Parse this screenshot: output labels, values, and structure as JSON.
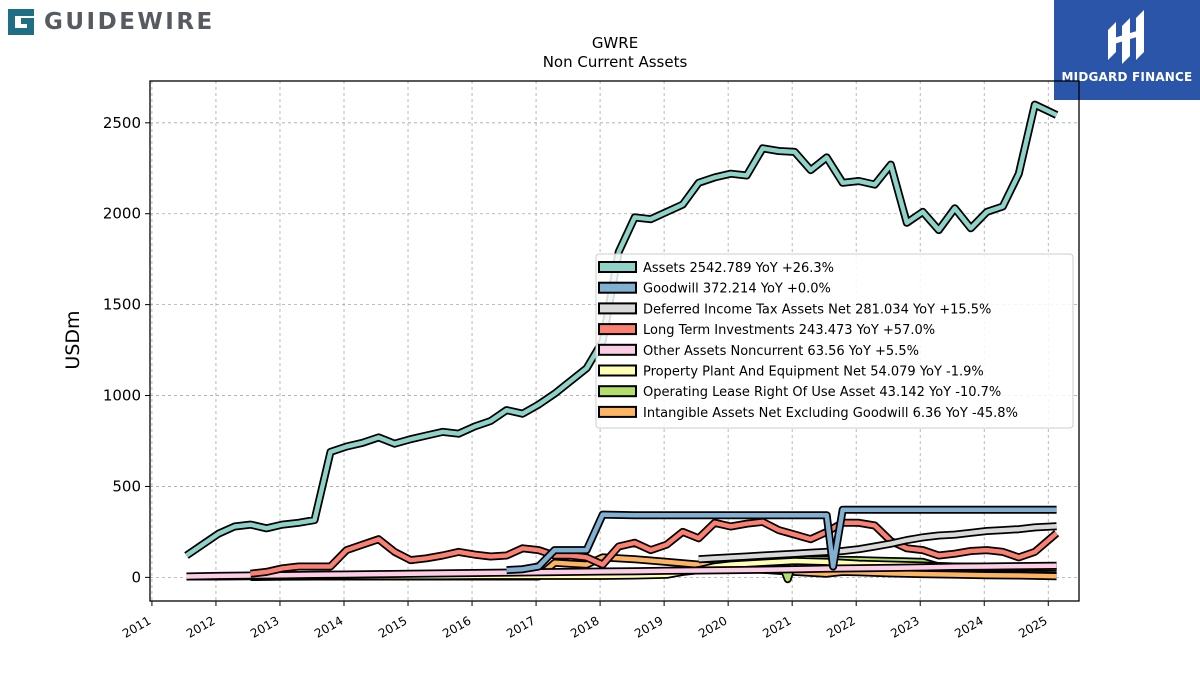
{
  "brand": {
    "name": "GUIDEWIRE",
    "icon": "guidewire-logo-icon",
    "color": "#1f6e86"
  },
  "badge": {
    "name": "MIDGARD FINANCE",
    "icon": "midgard-logo-icon",
    "bg": "#2a55a8"
  },
  "chart_data": {
    "type": "line",
    "title": "GWRE",
    "subtitle": "Non Current  Assets",
    "ylabel": "USDm",
    "xlabel": "",
    "xlim": [
      2010.97,
      2025.48
    ],
    "ylim": [
      -130,
      2730
    ],
    "yticks": [
      0,
      500,
      1000,
      1500,
      2000,
      2500
    ],
    "xticks": [
      2011,
      2012,
      2013,
      2014,
      2015,
      2016,
      2017,
      2018,
      2019,
      2020,
      2021,
      2022,
      2023,
      2024,
      2025
    ],
    "grid": true,
    "legend_position": "center-right",
    "series": [
      {
        "name": "Assets",
        "value": "2542.789",
        "yoy": "+26.3%",
        "color": "#8dd3c7",
        "x": [
          2011.54,
          2011.79,
          2012.04,
          2012.29,
          2012.54,
          2012.79,
          2013.04,
          2013.29,
          2013.54,
          2013.79,
          2014.04,
          2014.29,
          2014.54,
          2014.79,
          2015.04,
          2015.29,
          2015.54,
          2015.79,
          2016.04,
          2016.29,
          2016.54,
          2016.79,
          2017.04,
          2017.29,
          2017.54,
          2017.79,
          2018.04,
          2018.29,
          2018.54,
          2018.79,
          2019.04,
          2019.29,
          2019.54,
          2019.79,
          2020.04,
          2020.29,
          2020.54,
          2020.79,
          2021.04,
          2021.29,
          2021.54,
          2021.79,
          2022.04,
          2022.29,
          2022.54,
          2022.79,
          2023.04,
          2023.29,
          2023.54,
          2023.79,
          2024.04,
          2024.29,
          2024.54,
          2024.79,
          2025.13
        ],
        "y": [
          120,
          180,
          240,
          280,
          290,
          270,
          290,
          300,
          315,
          690,
          720,
          740,
          770,
          735,
          760,
          780,
          800,
          790,
          830,
          860,
          920,
          900,
          950,
          1010,
          1080,
          1150,
          1300,
          1790,
          1980,
          1970,
          2010,
          2050,
          2170,
          2200,
          2220,
          2210,
          2360,
          2345,
          2340,
          2240,
          2310,
          2170,
          2180,
          2160,
          2270,
          1950,
          2010,
          1910,
          2030,
          1920,
          2010,
          2040,
          2220,
          2600,
          2543
        ]
      },
      {
        "name": "Goodwill",
        "value": "372.214",
        "yoy": "+0.0%",
        "color": "#80b1d3",
        "x": [
          2016.54,
          2016.79,
          2017.04,
          2017.29,
          2017.54,
          2017.79,
          2018.04,
          2018.54,
          2019.04,
          2019.54,
          2020.04,
          2020.54,
          2021.04,
          2021.54,
          2021.64,
          2021.79,
          2022.04,
          2022.54,
          2023.04,
          2023.54,
          2024.04,
          2024.54,
          2025.13
        ],
        "y": [
          40,
          45,
          60,
          150,
          150,
          150,
          345,
          342,
          342,
          342,
          342,
          342,
          342,
          342,
          60,
          372,
          372,
          372,
          372,
          372,
          372,
          372,
          372
        ]
      },
      {
        "name": "Deferred Income Tax Assets Net",
        "value": "281.034",
        "yoy": "+15.5%",
        "color": "#d9d9d9",
        "x": [
          2019.54,
          2019.79,
          2020.04,
          2020.29,
          2020.54,
          2020.79,
          2021.04,
          2021.29,
          2021.54,
          2021.79,
          2022.04,
          2022.29,
          2022.54,
          2022.79,
          2023.04,
          2023.29,
          2023.54,
          2023.79,
          2024.04,
          2024.29,
          2024.54,
          2024.79,
          2025.13
        ],
        "y": [
          100,
          105,
          110,
          115,
          120,
          125,
          130,
          135,
          140,
          145,
          155,
          170,
          185,
          205,
          220,
          230,
          235,
          245,
          255,
          260,
          265,
          275,
          281
        ]
      },
      {
        "name": "Long Term Investments",
        "value": "243.473",
        "yoy": "+57.0%",
        "color": "#fb8072",
        "x": [
          2012.54,
          2012.79,
          2013.04,
          2013.29,
          2013.54,
          2013.79,
          2014.04,
          2014.29,
          2014.54,
          2014.79,
          2015.04,
          2015.29,
          2015.54,
          2015.79,
          2016.04,
          2016.29,
          2016.54,
          2016.79,
          2017.04,
          2017.29,
          2017.54,
          2017.79,
          2018.04,
          2018.29,
          2018.54,
          2018.79,
          2019.04,
          2019.29,
          2019.54,
          2019.79,
          2020.04,
          2020.29,
          2020.54,
          2020.79,
          2021.04,
          2021.29,
          2021.54,
          2021.79,
          2022.04,
          2022.29,
          2022.54,
          2022.79,
          2023.04,
          2023.29,
          2023.54,
          2023.79,
          2024.04,
          2024.29,
          2024.54,
          2024.79,
          2025.13
        ],
        "y": [
          20,
          30,
          50,
          60,
          60,
          60,
          150,
          180,
          210,
          140,
          95,
          105,
          120,
          140,
          125,
          115,
          120,
          160,
          150,
          120,
          120,
          110,
          70,
          170,
          190,
          150,
          180,
          250,
          215,
          300,
          280,
          295,
          305,
          260,
          235,
          210,
          250,
          300,
          300,
          285,
          200,
          160,
          150,
          120,
          130,
          145,
          150,
          140,
          110,
          140,
          243
        ]
      },
      {
        "name": "Other Assets Noncurrent",
        "value": "63.56",
        "yoy": "+5.5%",
        "color": "#fccde5",
        "x": [
          2011.54,
          2012.04,
          2012.54,
          2013.04,
          2013.54,
          2014.04,
          2014.54,
          2015.04,
          2015.54,
          2016.04,
          2016.54,
          2017.04,
          2017.54,
          2018.04,
          2018.54,
          2019.04,
          2019.54,
          2020.04,
          2020.54,
          2021.04,
          2021.54,
          2022.04,
          2022.54,
          2023.04,
          2023.54,
          2024.04,
          2024.54,
          2025.13
        ],
        "y": [
          5,
          8,
          10,
          12,
          14,
          16,
          18,
          20,
          22,
          24,
          26,
          28,
          30,
          32,
          34,
          36,
          38,
          40,
          42,
          45,
          48,
          50,
          52,
          55,
          58,
          60,
          62,
          64
        ]
      },
      {
        "name": "Property Plant And Equipment Net",
        "value": "54.079",
        "yoy": "-1.9%",
        "color": "#ffffb3",
        "x": [
          2011.54,
          2012.04,
          2012.54,
          2013.04,
          2013.54,
          2014.04,
          2014.54,
          2015.04,
          2015.54,
          2016.04,
          2016.54,
          2017.04,
          2017.54,
          2018.04,
          2018.54,
          2019.04,
          2019.29,
          2019.54,
          2019.79,
          2020.04,
          2020.54,
          2021.04,
          2021.54,
          2022.04,
          2022.54,
          2023.04,
          2023.54,
          2024.04,
          2024.54,
          2025.13
        ],
        "y": [
          5,
          5,
          6,
          6,
          6,
          7,
          7,
          7,
          7,
          8,
          8,
          8,
          8,
          8,
          10,
          14,
          30,
          40,
          60,
          70,
          80,
          90,
          85,
          75,
          70,
          65,
          60,
          58,
          56,
          54
        ]
      },
      {
        "name": "Operating Lease Right Of Use Asset",
        "value": "43.142",
        "yoy": "-10.7%",
        "color": "#b3de69",
        "x": [
          2019.79,
          2020.04,
          2020.29,
          2020.54,
          2020.79,
          2020.93,
          2021.04,
          2021.29,
          2021.54,
          2021.79,
          2022.04,
          2022.29,
          2022.54,
          2022.79,
          2023.04,
          2023.29,
          2023.54,
          2023.79,
          2024.04,
          2024.29,
          2024.54,
          2024.79,
          2025.13
        ],
        "y": [
          90,
          95,
          100,
          110,
          115,
          -10,
          105,
          100,
          98,
          96,
          95,
          92,
          90,
          88,
          85,
          60,
          58,
          55,
          52,
          50,
          48,
          46,
          43
        ]
      },
      {
        "name": "Intangible Assets Net Excluding Goodwill",
        "value": "6.36",
        "yoy": "-45.8%",
        "color": "#fdb462",
        "x": [
          2012.54,
          2013.04,
          2013.54,
          2014.04,
          2014.54,
          2015.04,
          2015.54,
          2016.04,
          2016.54,
          2017.04,
          2017.29,
          2017.54,
          2017.79,
          2018.04,
          2018.54,
          2019.04,
          2019.54,
          2020.04,
          2020.54,
          2021.04,
          2021.54,
          2021.79,
          2022.04,
          2022.54,
          2023.04,
          2023.54,
          2024.04,
          2024.54,
          2025.13
        ],
        "y": [
          2,
          4,
          5,
          5,
          5,
          5,
          5,
          5,
          5,
          5,
          80,
          75,
          70,
          110,
          100,
          85,
          70,
          55,
          42,
          30,
          20,
          30,
          28,
          22,
          18,
          15,
          12,
          10,
          6
        ]
      }
    ]
  }
}
